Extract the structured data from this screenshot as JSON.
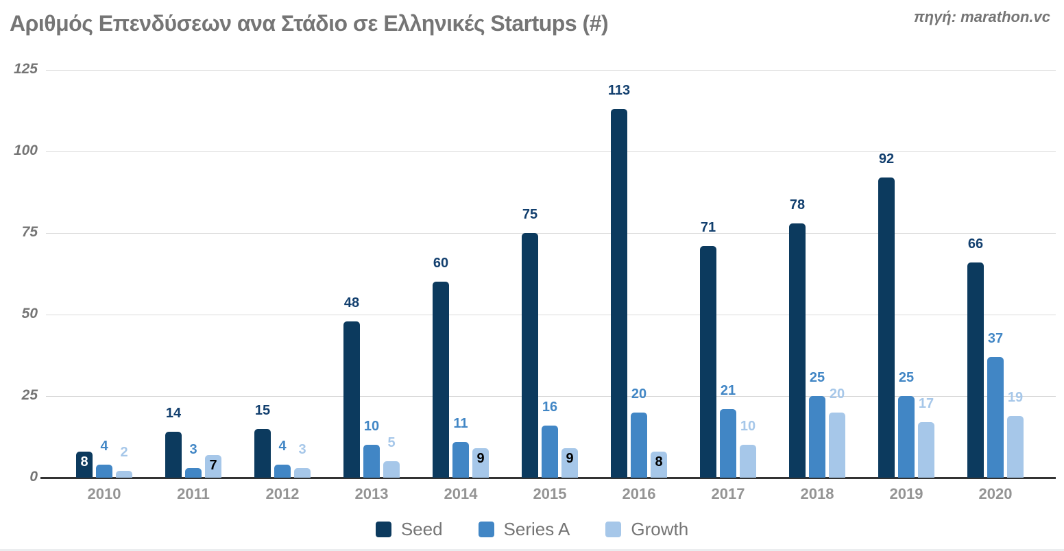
{
  "chart_data": {
    "type": "bar",
    "title": "Αριθμός Επενδύσεων ανα Στάδιο σε Ελληνικές Startups (#)",
    "source_note": "πηγή: marathon.vc",
    "categories": [
      "2010",
      "2011",
      "2012",
      "2013",
      "2014",
      "2015",
      "2016",
      "2017",
      "2018",
      "2019",
      "2020"
    ],
    "series": [
      {
        "name": "Seed",
        "color": "#0c3a5e",
        "label_color": "#123f6e",
        "inside_label_color": "#ffffff",
        "values": [
          8,
          14,
          15,
          48,
          60,
          75,
          113,
          71,
          78,
          92,
          66
        ],
        "label_inside": [
          true,
          false,
          false,
          false,
          false,
          false,
          false,
          false,
          false,
          false,
          false
        ]
      },
      {
        "name": "Series A",
        "color": "#4186c5",
        "label_color": "#4186c5",
        "inside_label_color": "#ffffff",
        "values": [
          4,
          3,
          4,
          10,
          11,
          16,
          20,
          21,
          25,
          25,
          37
        ],
        "label_inside": [
          false,
          false,
          false,
          false,
          false,
          false,
          false,
          false,
          false,
          false,
          false
        ]
      },
      {
        "name": "Growth",
        "color": "#a6c7e9",
        "label_color": "#a6c7e9",
        "inside_label_color": "#000000",
        "values": [
          2,
          7,
          3,
          5,
          9,
          9,
          8,
          10,
          20,
          17,
          19
        ],
        "label_inside": [
          false,
          true,
          false,
          false,
          true,
          true,
          true,
          false,
          false,
          false,
          false
        ]
      }
    ],
    "y_ticks": [
      0,
      25,
      50,
      75,
      100,
      125
    ],
    "ylim": [
      0,
      125
    ],
    "grid": true,
    "legend_position": "bottom",
    "colors": {
      "grid": "#d9d9d9",
      "axis": "#333333",
      "tick_label": "#757575",
      "category_label": "#949494",
      "title": "#757575"
    }
  }
}
